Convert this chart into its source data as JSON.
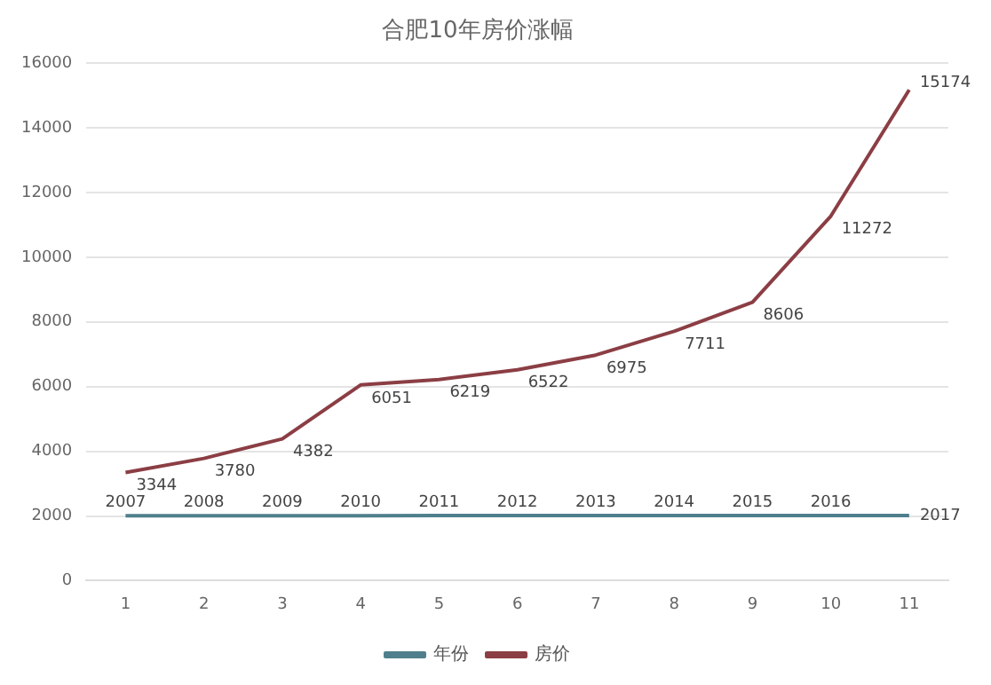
{
  "chart_data": {
    "type": "line",
    "title": "合肥10年房价涨幅",
    "categories": [
      "1",
      "2",
      "3",
      "4",
      "5",
      "6",
      "7",
      "8",
      "9",
      "10",
      "11"
    ],
    "series": [
      {
        "name": "年份",
        "color": "#4f7f8c",
        "values": [
          2007,
          2008,
          2009,
          2010,
          2011,
          2012,
          2013,
          2014,
          2015,
          2016,
          2017
        ]
      },
      {
        "name": "房价",
        "color": "#8b3e44",
        "values": [
          3344,
          3780,
          4382,
          6051,
          6219,
          6522,
          6975,
          7711,
          8606,
          11272,
          15174
        ]
      }
    ],
    "ylim": [
      0,
      16000
    ],
    "yticks": [
      0,
      2000,
      4000,
      6000,
      8000,
      10000,
      12000,
      14000,
      16000
    ],
    "grid": "y",
    "legend": "bottom",
    "data_labels": true,
    "marker": "none",
    "line_style": "solid"
  }
}
